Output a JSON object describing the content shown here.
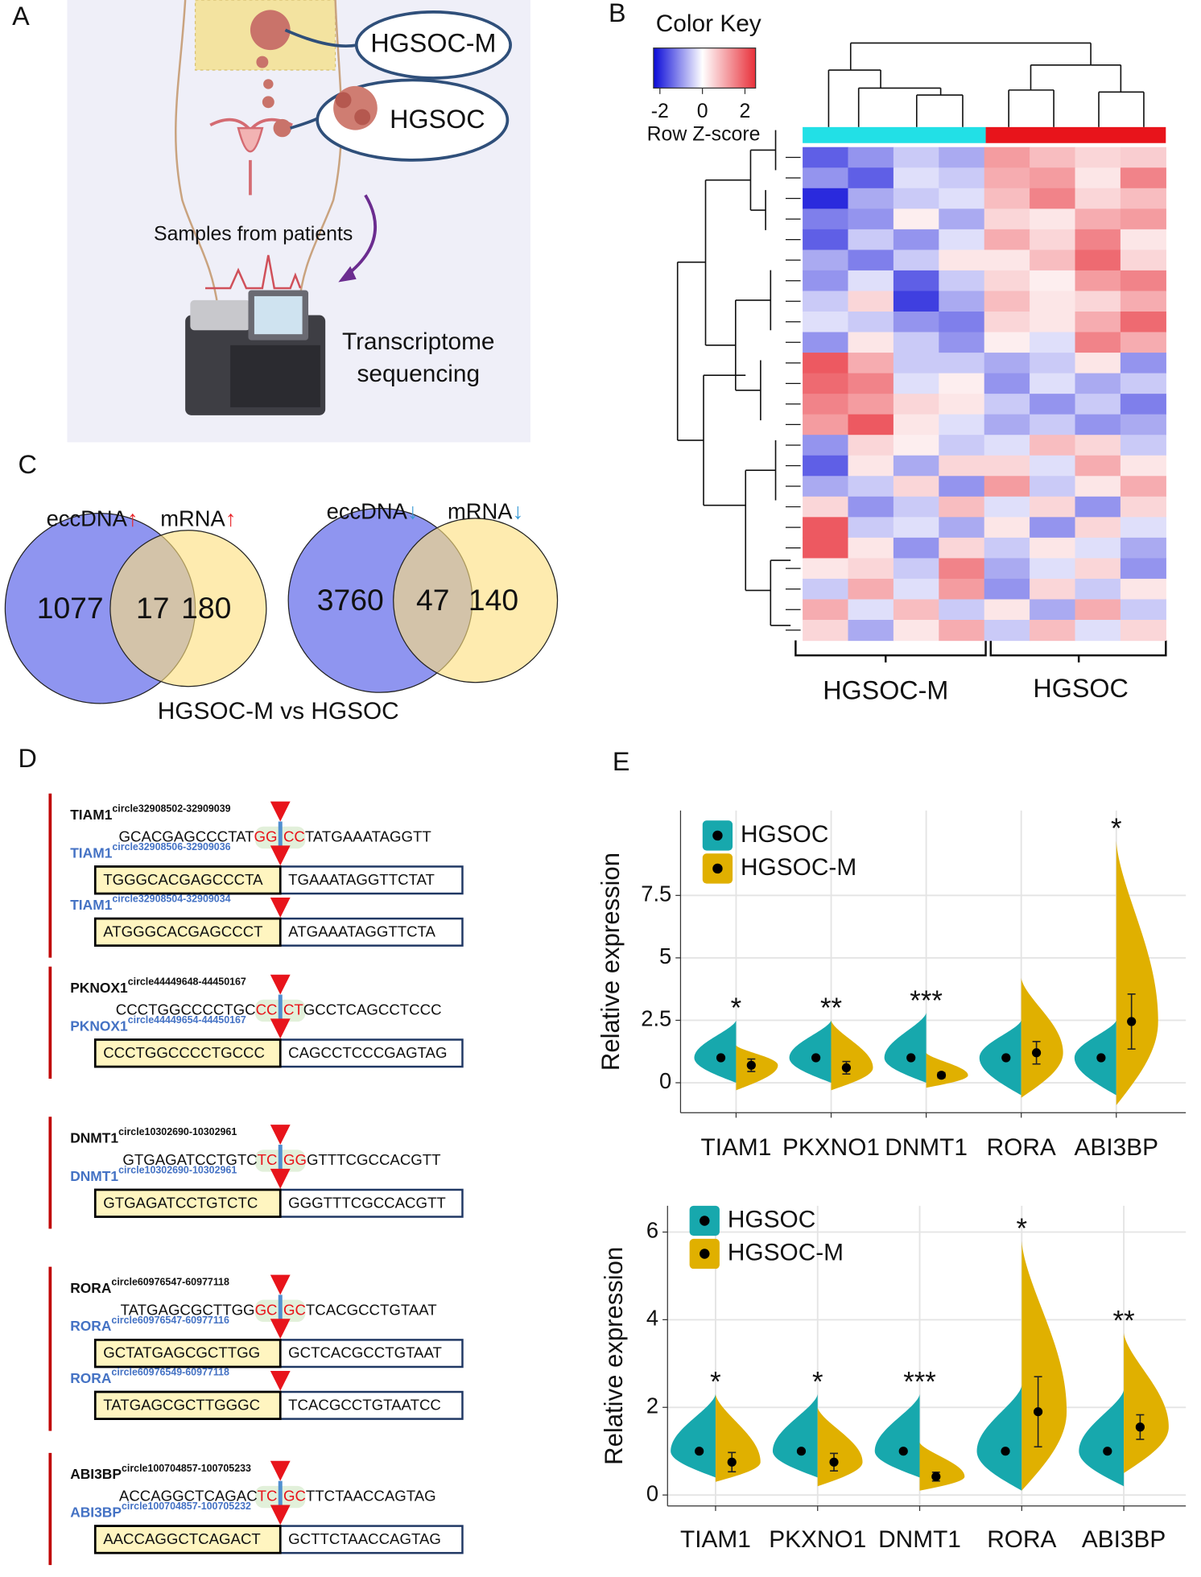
{
  "panel_labels": [
    "A",
    "B",
    "C",
    "D",
    "E"
  ],
  "panel_a": {
    "tumor_labels": [
      "HGSOC-M",
      "HGSOC"
    ],
    "caption": "Samples from patients",
    "instrument": [
      "Transcriptome",
      "sequencing"
    ]
  },
  "panel_b": {
    "color_key": {
      "title": "Color Key",
      "label": "Row Z-score",
      "lim": [
        -2.3,
        2.5
      ],
      "ticks": [
        -2,
        0,
        2
      ],
      "colors": [
        "#0a0ad8",
        "#ffffff",
        "#e8303a"
      ]
    },
    "groups": [
      {
        "name": "HGSOC-M",
        "color": "#22e0e6"
      },
      {
        "name": "HGSOC",
        "color": "#e8141b"
      }
    ],
    "heatmap": {
      "values": [
        [
          -1.5,
          -1,
          -0.5,
          -0.8,
          1.2,
          0.8,
          0.5,
          0.6
        ],
        [
          -1,
          -1.5,
          -0.3,
          -0.5,
          1,
          1.2,
          0.3,
          1.5
        ],
        [
          -2,
          -0.8,
          -0.5,
          -0.3,
          0.8,
          1.5,
          0.5,
          0.8
        ],
        [
          -1.2,
          -1,
          0.2,
          -0.8,
          0.5,
          0.3,
          1,
          1.2
        ],
        [
          -1.5,
          -0.5,
          -1,
          -0.3,
          1,
          0.5,
          1.5,
          0.3
        ],
        [
          -0.8,
          -1.2,
          -0.5,
          0.3,
          0.3,
          0.8,
          1.8,
          0.5
        ],
        [
          -1,
          -0.3,
          -1.5,
          -0.5,
          0.5,
          0.2,
          1.2,
          1.5
        ],
        [
          -0.5,
          0.5,
          -1.8,
          -0.8,
          0.8,
          0.3,
          0.5,
          1
        ],
        [
          -0.3,
          -0.5,
          -1,
          -1.2,
          0.5,
          0.3,
          1,
          1.8
        ],
        [
          -1,
          0.3,
          -0.5,
          -1,
          0.2,
          -0.3,
          1.5,
          1
        ],
        [
          2,
          1,
          -0.5,
          -0.5,
          -0.8,
          -0.5,
          0.3,
          -1
        ],
        [
          1.8,
          1.5,
          -0.3,
          0.2,
          -1,
          -0.3,
          -0.8,
          -0.5
        ],
        [
          1.5,
          1.2,
          0.5,
          0.3,
          -0.5,
          -1,
          -0.5,
          -1.2
        ],
        [
          1.2,
          2,
          0.3,
          -0.3,
          -0.8,
          -0.5,
          -1,
          -0.8
        ],
        [
          -1,
          0.5,
          0.2,
          -0.5,
          -0.3,
          0.8,
          0.5,
          -0.5
        ],
        [
          -1.5,
          0.3,
          -0.8,
          0.5,
          0.5,
          -0.3,
          1,
          0.3
        ],
        [
          -0.8,
          -0.5,
          0.5,
          -1,
          1.2,
          -0.5,
          0.3,
          1
        ],
        [
          0.5,
          -1,
          -0.5,
          0.8,
          -0.3,
          0.5,
          -1,
          0.5
        ],
        [
          2,
          -0.5,
          -0.3,
          -0.8,
          0.3,
          -1,
          0.5,
          -0.3
        ],
        [
          2,
          0.3,
          -1,
          0.5,
          -0.5,
          0.3,
          -0.3,
          -0.8
        ],
        [
          0.3,
          0.5,
          -0.5,
          1.5,
          -0.8,
          -0.3,
          0.5,
          -1
        ],
        [
          -0.5,
          1,
          -0.3,
          1.2,
          -1,
          0.5,
          -0.5,
          0.3
        ],
        [
          1,
          -0.3,
          0.8,
          -0.5,
          0.3,
          -0.8,
          1,
          -0.5
        ],
        [
          0.5,
          -0.8,
          0.3,
          1,
          -0.5,
          0.8,
          -0.3,
          0.5
        ]
      ]
    }
  },
  "panel_c": {
    "venns": [
      {
        "left": {
          "name": "eccDNA",
          "arrow": "↑",
          "count": 1077
        },
        "right": {
          "name": "mRNA",
          "arrow": "↑",
          "count": 180
        },
        "overlap": 17,
        "arrow_color": "#e8262b",
        "overlap_color": "#e8262b"
      },
      {
        "left": {
          "name": "eccDNA",
          "arrow": "↓",
          "count": 3760
        },
        "right": {
          "name": "mRNA",
          "arrow": "↓",
          "count": 140
        },
        "overlap": 47,
        "arrow_color": "#3b9bd6",
        "overlap_color": "#4a76c2"
      }
    ],
    "caption": "HGSOC-M vs HGSOC"
  },
  "panel_d": {
    "genes": [
      {
        "name": "TIAM1",
        "circle": "circle32908502-32909039",
        "sequence": [
          "GCACGAGCCCTAT",
          "GG",
          "CC",
          "TATGAAATAGGTT"
        ],
        "rows": [
          {
            "name": "TIAM1",
            "circle": "circle32908506-32909036",
            "left": "TGGGCACGAGCCCTA",
            "right": "TGAAATAGGTTCTAT"
          },
          {
            "name": "TIAM1",
            "circle": "circle32908504-32909034",
            "left": "ATGGGCACGAGCCCT",
            "right": "ATGAAATAGGTTCTA"
          }
        ]
      },
      {
        "name": "PKNOX1",
        "circle": "circle44449648-44450167",
        "sequence": [
          "CCCTGGCCCCTGC",
          "CC",
          "CT",
          "GCCTCAGCCTCCC"
        ],
        "rows": [
          {
            "name": "PKNOX1",
            "circle": "circle44449654-44450167",
            "left": "CCCTGGCCCCTGCCC",
            "right": "CAGCCTCCCGAGTAG"
          }
        ]
      },
      {
        "name": "DNMT1",
        "circle": "circle10302690-10302961",
        "sequence": [
          "GTGAGATCCTGTC",
          "TC",
          "GG",
          "GTTTCGCCACGTT"
        ],
        "rows": [
          {
            "name": "DNMT1",
            "circle": "circle10302690-10302961",
            "left": "GTGAGATCCTGTCTC",
            "right": "GGGTTTCGCCACGTT"
          }
        ]
      },
      {
        "name": "RORA",
        "circle": "circle60976547-60977118",
        "sequence": [
          "TATGAGCGCTTGG",
          "GC",
          "GC",
          "TCACGCCTGTAAT"
        ],
        "rows": [
          {
            "name": "RORA",
            "circle": "circle60976547-60977116",
            "left": "GCTATGAGCGCTTGG",
            "right": "GCTCACGCCTGTAAT"
          },
          {
            "name": "RORA",
            "circle": "circle60976549-60977118",
            "left": "TATGAGCGCTTGGGC",
            "right": "TCACGCCTGTAATCC"
          }
        ]
      },
      {
        "name": "ABI3BP",
        "circle": "circle100704857-100705233",
        "sequence": [
          "ACCAGGCTCAGAC",
          "TC",
          "GC",
          "TTCTAACCAGTAG"
        ],
        "rows": [
          {
            "name": "ABI3BP",
            "circle": "circle100704857-100705232",
            "left": "AACCAGGCTCAGACT",
            "right": "GCTTCTAACCAGTAG"
          }
        ]
      }
    ]
  },
  "chart_data": [
    {
      "type": "violin",
      "y_label": "Relative expression",
      "categories": [
        "TIAM1",
        "PKXNO1",
        "DNMT1",
        "RORA",
        "ABI3BP"
      ],
      "series": [
        {
          "name": "HGSOC",
          "color": "#17a8ad",
          "values": [
            1,
            1,
            1,
            1,
            1
          ],
          "ranges": [
            [
              0,
              2.5
            ],
            [
              0,
              2.5
            ],
            [
              0,
              2.8
            ],
            [
              -0.5,
              2.5
            ],
            [
              -0.5,
              2.5
            ]
          ]
        },
        {
          "name": "HGSOC-M",
          "color": "#e0b000",
          "values": [
            0.7,
            0.6,
            0.3,
            1.2,
            2.45
          ],
          "errors": [
            0.25,
            0.25,
            0.1,
            0.45,
            1.1
          ],
          "ranges": [
            [
              -0.3,
              1.5
            ],
            [
              -0.3,
              2.5
            ],
            [
              -0.2,
              1.2
            ],
            [
              -0.6,
              4.2
            ],
            [
              -0.9,
              9.7
            ]
          ]
        }
      ],
      "annotations": [
        "*",
        "**",
        "***",
        null,
        "*"
      ],
      "ylim": [
        -1.2,
        10.9
      ],
      "yticks": [
        0,
        2.5,
        5,
        7.5
      ],
      "grid": true,
      "legend": "top-left"
    },
    {
      "type": "violin",
      "y_label": "Relative expression",
      "categories": [
        "TIAM1",
        "PKXNO1",
        "DNMT1",
        "RORA",
        "ABI3BP"
      ],
      "series": [
        {
          "name": "HGSOC",
          "color": "#17a8ad",
          "values": [
            1,
            1,
            1,
            1,
            1
          ],
          "ranges": [
            [
              0.4,
              2.3
            ],
            [
              0.4,
              2.3
            ],
            [
              0.4,
              2.3
            ],
            [
              0.1,
              2.5
            ],
            [
              0.2,
              2.4
            ]
          ]
        },
        {
          "name": "HGSOC-M",
          "color": "#e0b000",
          "values": [
            0.75,
            0.75,
            0.42,
            1.9,
            1.55
          ],
          "errors": [
            0.22,
            0.2,
            0.1,
            0.8,
            0.28
          ],
          "ranges": [
            [
              0.3,
              2.3
            ],
            [
              0.2,
              2.0
            ],
            [
              0.1,
              1.2
            ],
            [
              0.1,
              5.8
            ],
            [
              0.5,
              3.7
            ]
          ]
        }
      ],
      "annotations": [
        "*",
        "*",
        "***",
        "*",
        "**"
      ],
      "ylim": [
        -0.25,
        6.6
      ],
      "yticks": [
        0,
        2,
        4,
        6
      ],
      "grid": true,
      "legend": "top-left"
    }
  ]
}
